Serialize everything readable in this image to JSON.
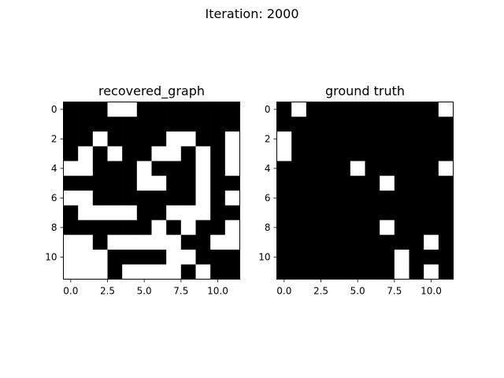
{
  "figure": {
    "suptitle": "Iteration: 2000"
  },
  "chart_data": [
    {
      "type": "heatmap",
      "title": "recovered_graph",
      "colormap": {
        "0": "#000000",
        "1": "#ffffff"
      },
      "xticks": [
        "0.0",
        "2.5",
        "5.0",
        "7.5",
        "10.0"
      ],
      "yticks": [
        "0",
        "2",
        "4",
        "6",
        "8",
        "10"
      ],
      "xlim": [
        -0.5,
        11.5
      ],
      "ylim": [
        11.5,
        -0.5
      ],
      "matrix": [
        [
          0,
          0,
          0,
          1,
          1,
          0,
          0,
          0,
          0,
          0,
          0,
          0
        ],
        [
          0,
          0,
          0,
          0,
          0,
          0,
          0,
          0,
          0,
          0,
          0,
          0
        ],
        [
          0,
          0,
          1,
          0,
          0,
          0,
          0,
          1,
          1,
          0,
          0,
          1
        ],
        [
          0,
          1,
          0,
          1,
          0,
          0,
          1,
          1,
          0,
          1,
          0,
          1
        ],
        [
          1,
          1,
          0,
          0,
          0,
          1,
          0,
          0,
          0,
          1,
          0,
          1
        ],
        [
          0,
          0,
          0,
          0,
          0,
          1,
          1,
          0,
          0,
          1,
          0,
          0
        ],
        [
          1,
          1,
          0,
          0,
          0,
          0,
          0,
          0,
          0,
          1,
          0,
          1
        ],
        [
          0,
          1,
          1,
          1,
          1,
          0,
          0,
          1,
          1,
          1,
          0,
          0
        ],
        [
          0,
          0,
          0,
          0,
          0,
          0,
          1,
          0,
          1,
          0,
          0,
          1
        ],
        [
          1,
          1,
          0,
          1,
          1,
          1,
          1,
          1,
          0,
          0,
          1,
          1
        ],
        [
          1,
          1,
          1,
          0,
          0,
          0,
          0,
          1,
          1,
          0,
          0,
          0
        ],
        [
          1,
          1,
          1,
          0,
          1,
          1,
          1,
          1,
          0,
          1,
          0,
          0
        ]
      ]
    },
    {
      "type": "heatmap",
      "title": "ground truth",
      "colormap": {
        "0": "#000000",
        "1": "#ffffff"
      },
      "xticks": [
        "0.0",
        "2.5",
        "5.0",
        "7.5",
        "10.0"
      ],
      "yticks": [
        "0",
        "2",
        "4",
        "6",
        "8",
        "10"
      ],
      "xlim": [
        -0.5,
        11.5
      ],
      "ylim": [
        11.5,
        -0.5
      ],
      "matrix": [
        [
          0,
          1,
          0,
          0,
          0,
          0,
          0,
          0,
          0,
          0,
          0,
          1
        ],
        [
          0,
          0,
          0,
          0,
          0,
          0,
          0,
          0,
          0,
          0,
          0,
          0
        ],
        [
          1,
          0,
          0,
          0,
          0,
          0,
          0,
          0,
          0,
          0,
          0,
          0
        ],
        [
          1,
          0,
          0,
          0,
          0,
          0,
          0,
          0,
          0,
          0,
          0,
          0
        ],
        [
          0,
          0,
          0,
          0,
          0,
          1,
          0,
          0,
          0,
          0,
          0,
          1
        ],
        [
          0,
          0,
          0,
          0,
          0,
          0,
          0,
          1,
          0,
          0,
          0,
          0
        ],
        [
          0,
          0,
          0,
          0,
          0,
          0,
          0,
          0,
          0,
          0,
          0,
          0
        ],
        [
          0,
          0,
          0,
          0,
          0,
          0,
          0,
          0,
          0,
          0,
          0,
          0
        ],
        [
          0,
          0,
          0,
          0,
          0,
          0,
          0,
          1,
          0,
          0,
          0,
          0
        ],
        [
          0,
          0,
          0,
          0,
          0,
          0,
          0,
          0,
          0,
          0,
          1,
          0
        ],
        [
          0,
          0,
          0,
          0,
          0,
          0,
          0,
          0,
          1,
          0,
          0,
          0
        ],
        [
          0,
          0,
          0,
          0,
          0,
          0,
          0,
          0,
          1,
          0,
          1,
          0
        ]
      ]
    }
  ]
}
